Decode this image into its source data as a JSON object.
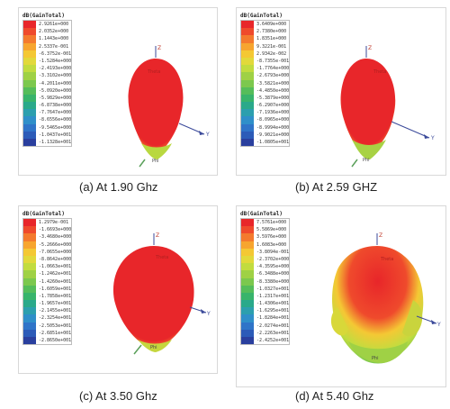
{
  "chart_data": [
    {
      "type": "heatmap",
      "title": "dB(GainTotal)",
      "caption": "(a) At 1.90 Ghz",
      "color_scale": [
        "2.9261e+000",
        "2.0352e+000",
        "1.1443e+000",
        "2.5337e-001",
        "-6.3752e-001",
        "-1.5284e+000",
        "-2.4193e+000",
        "-3.3102e+000",
        "-4.2011e+000",
        "-5.0920e+000",
        "-5.9829e+000",
        "-6.8738e+000",
        "-7.7647e+000",
        "-8.6556e+000",
        "-9.5465e+000",
        "-1.0437e+001",
        "-1.1328e+001"
      ],
      "axis_labels": [
        "Z",
        "Y",
        "Theta",
        "Phi"
      ]
    },
    {
      "type": "heatmap",
      "title": "dB(GainTotal)",
      "caption": "(b) At 2.59 GHZ",
      "color_scale": [
        "3.6409e+000",
        "2.7380e+000",
        "1.8351e+000",
        "9.3221e-001",
        "2.9342e-002",
        "-8.7355e-001",
        "-1.7764e+000",
        "-2.6793e+000",
        "-3.5821e+000",
        "-4.4850e+000",
        "-5.3879e+000",
        "-6.2907e+000",
        "-7.1936e+000",
        "-8.0965e+000",
        "-8.9994e+000",
        "-9.9021e+000",
        "-1.0805e+001"
      ],
      "axis_labels": [
        "Z",
        "Y",
        "Theta",
        "Phi"
      ]
    },
    {
      "type": "heatmap",
      "title": "dB(GainTotal)",
      "caption": "(c) At 3.50 Ghz",
      "color_scale": [
        "1.2979e-001",
        "-1.6693e+000",
        "-3.4680e+000",
        "-5.2666e+000",
        "-7.0655e+000",
        "-8.8642e+000",
        "-1.0663e+001",
        "-1.2462e+001",
        "-1.4260e+001",
        "-1.6059e+001",
        "-1.7858e+001",
        "-1.9657e+001",
        "-2.1455e+001",
        "-2.3254e+001",
        "-2.5053e+001",
        "-2.6851e+001",
        "-2.8650e+001"
      ],
      "axis_labels": [
        "Z",
        "Y",
        "Theta",
        "Phi"
      ]
    },
    {
      "type": "heatmap",
      "title": "dB(GainTotal)",
      "caption": "(d) At 5.40 Ghz",
      "color_scale": [
        "7.5761e+000",
        "5.5869e+000",
        "3.5976e+000",
        "1.6083e+000",
        "-3.8094e-001",
        "-2.3702e+000",
        "-4.3595e+000",
        "-6.3488e+000",
        "-8.3380e+000",
        "-1.0327e+001",
        "-1.2317e+001",
        "-1.4306e+001",
        "-1.6295e+001",
        "-1.8284e+001",
        "-2.0274e+001",
        "-2.2263e+001",
        "-2.4252e+001"
      ],
      "axis_labels": [
        "Z",
        "Y",
        "Theta",
        "Phi"
      ]
    }
  ],
  "colors": [
    "#e8262a",
    "#ef4a2c",
    "#f47a2e",
    "#f7a52f",
    "#f4c834",
    "#e2d93b",
    "#c2dc3f",
    "#9fd145",
    "#7cc84e",
    "#55bd5a",
    "#38b46b",
    "#2aa98a",
    "#2c9fae",
    "#2f8fc9",
    "#2f74c8",
    "#2c5bb8",
    "#2a3f9e"
  ]
}
